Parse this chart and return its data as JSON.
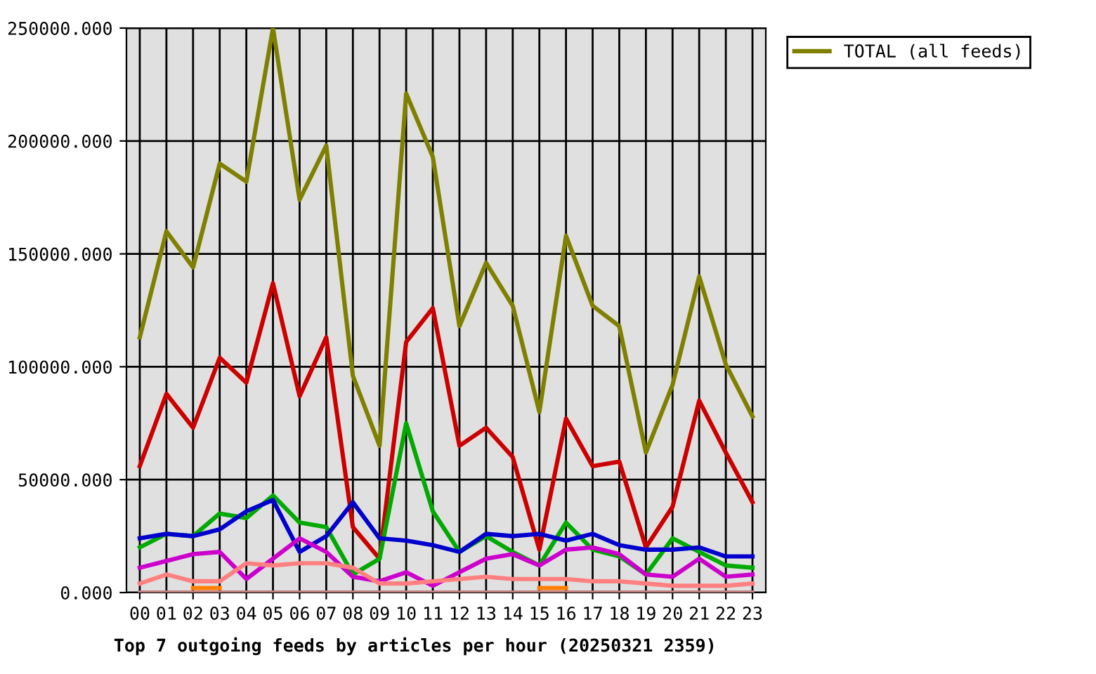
{
  "chart_data": {
    "type": "line",
    "title": "Top 7 outgoing feeds by articles per hour (20250321 2359)",
    "categories": [
      "00",
      "01",
      "02",
      "03",
      "04",
      "05",
      "06",
      "07",
      "08",
      "09",
      "10",
      "11",
      "12",
      "13",
      "14",
      "15",
      "16",
      "17",
      "18",
      "19",
      "20",
      "21",
      "22",
      "23"
    ],
    "series": [
      {
        "color": "#cc0000",
        "values": [
          56000,
          88000,
          73000,
          104000,
          93000,
          137000,
          87000,
          113000,
          29000,
          15000,
          111000,
          126000,
          65000,
          73000,
          60000,
          19000,
          77000,
          56000,
          58000,
          20000,
          38000,
          85000,
          62000,
          40000
        ]
      },
      {
        "color": "#00aa00",
        "values": [
          20000,
          26000,
          25000,
          35000,
          33000,
          43000,
          31000,
          29000,
          8000,
          15000,
          75000,
          36000,
          18000,
          25000,
          18000,
          12000,
          31000,
          19000,
          16000,
          8000,
          24000,
          18000,
          12000,
          11000
        ]
      },
      {
        "color": "#0000cc",
        "values": [
          24000,
          26000,
          25000,
          28000,
          36000,
          41000,
          18000,
          25000,
          40000,
          24000,
          23000,
          21000,
          18000,
          26000,
          25000,
          26000,
          23000,
          26000,
          21000,
          19000,
          19000,
          20000,
          16000,
          16000
        ]
      },
      {
        "color": "#cc00cc",
        "values": [
          11000,
          14000,
          17000,
          18000,
          6000,
          15000,
          24000,
          18000,
          7000,
          5000,
          9000,
          3000,
          9000,
          15000,
          17000,
          12000,
          19000,
          20000,
          17000,
          8000,
          7000,
          15000,
          7000,
          8000
        ]
      },
      {
        "color": "#ff8080",
        "values": [
          4000,
          8000,
          5000,
          5000,
          13000,
          12000,
          13000,
          13000,
          11000,
          4000,
          4000,
          5000,
          6000,
          7000,
          6000,
          6000,
          6000,
          5000,
          5000,
          4000,
          3000,
          3000,
          3000,
          4000
        ]
      },
      {
        "color": "#ff8000",
        "values": [
          null,
          null,
          2000,
          2000,
          null,
          null,
          null,
          null,
          null,
          null,
          null,
          null,
          null,
          null,
          null,
          2000,
          2000,
          null,
          null,
          null,
          null,
          null,
          null,
          null
        ]
      },
      {
        "color": "#c08080",
        "values": [
          0,
          0,
          0,
          0,
          0,
          0,
          0,
          0,
          0,
          0,
          0,
          0,
          0,
          0,
          0,
          0,
          0,
          0,
          0,
          0,
          0,
          0,
          0,
          0
        ]
      },
      {
        "name": "TOTAL (all feeds)",
        "color": "#808000",
        "values": [
          113000,
          160000,
          144000,
          190000,
          182000,
          250000,
          174000,
          198000,
          96000,
          65000,
          221000,
          193000,
          118000,
          146000,
          127000,
          80000,
          158000,
          127000,
          118000,
          62000,
          92000,
          140000,
          101000,
          78000
        ]
      }
    ],
    "ylim": [
      0,
      250000
    ],
    "yticks": [
      {
        "value": 0,
        "label": "0.000"
      },
      {
        "value": 50000,
        "label": "50000.000"
      },
      {
        "value": 100000,
        "label": "100000.000"
      },
      {
        "value": 150000,
        "label": "150000.000"
      },
      {
        "value": 200000,
        "label": "200000.000"
      },
      {
        "value": 250000,
        "label": "250000.000"
      }
    ],
    "grid": true,
    "legend": "top right",
    "marker": "none",
    "line_style": "solid"
  }
}
